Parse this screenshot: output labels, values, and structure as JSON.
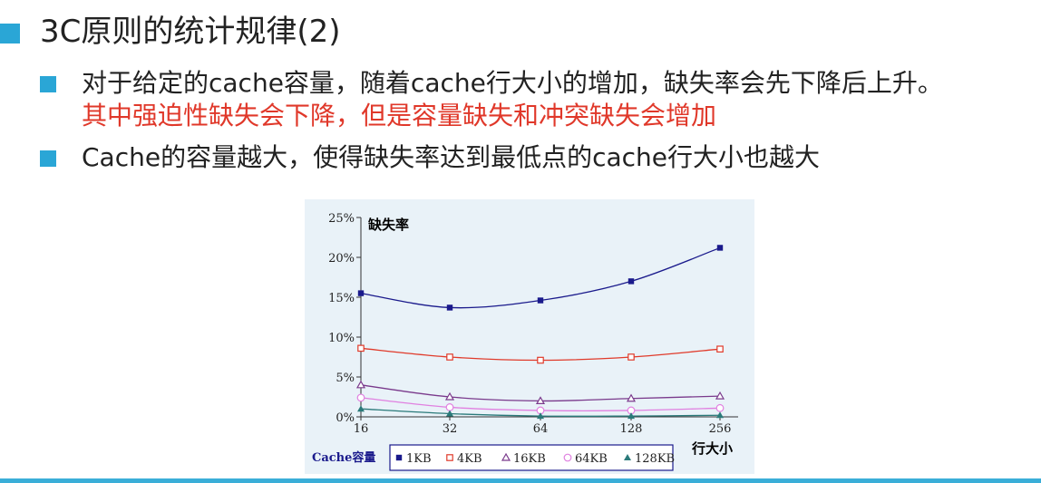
{
  "slide": {
    "title": "3C原则的统计规律(2)",
    "bullets": [
      {
        "line1": "对于给定的cache容量，随着cache行大小的增加，缺失率会先下降后上升。",
        "line2": "其中强迫性缺失会下降，但是容量缺失和冲突缺失会增加"
      },
      {
        "line1": "Cache的容量越大，使得缺失率达到最低点的cache行大小也越大"
      }
    ],
    "colors": {
      "accent": "#2aa6d6",
      "highlight": "#e0382a"
    }
  },
  "chart_data": {
    "type": "line",
    "ylabel": "缺失率",
    "xlabel": "行大小",
    "legend_title": "Cache容量",
    "legend_placement": "bottom",
    "categories": [
      "16",
      "32",
      "64",
      "128",
      "256"
    ],
    "y_ticks": [
      "0%",
      "5%",
      "10%",
      "15%",
      "20%",
      "25%"
    ],
    "ylim": [
      0,
      25
    ],
    "grid": false,
    "series": [
      {
        "name": "1KB",
        "values": [
          15.5,
          13.7,
          14.6,
          17.0,
          21.2
        ],
        "color": "#1a1a8c",
        "marker": "square-filled"
      },
      {
        "name": "4KB",
        "values": [
          8.6,
          7.5,
          7.1,
          7.5,
          8.5
        ],
        "color": "#e03a2a",
        "marker": "square-open"
      },
      {
        "name": "16KB",
        "values": [
          4.0,
          2.5,
          2.0,
          2.3,
          2.6
        ],
        "color": "#7a3a8c",
        "marker": "triangle-open"
      },
      {
        "name": "64KB",
        "values": [
          2.4,
          1.2,
          0.8,
          0.8,
          1.1
        ],
        "color": "#e080e0",
        "marker": "circle-open"
      },
      {
        "name": "128KB",
        "values": [
          1.0,
          0.4,
          0.1,
          0.1,
          0.2
        ],
        "color": "#2a7a7a",
        "marker": "triangle-filled"
      }
    ]
  }
}
